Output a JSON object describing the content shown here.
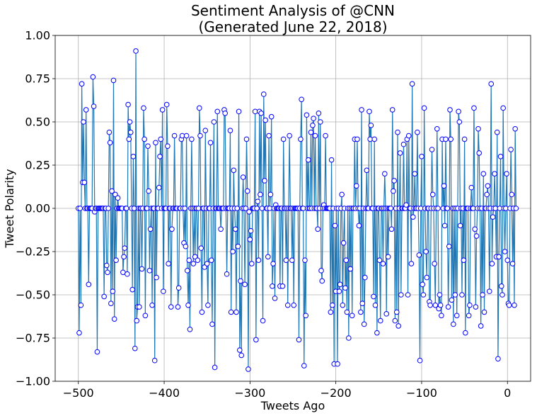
{
  "chart_data": {
    "type": "line",
    "title": "Sentiment Analysis of @CNN\n(Generated June 22, 2018)",
    "title_lines": [
      "Sentiment Analysis of @CNN",
      "(Generated June 22, 2018)"
    ],
    "xlabel": "Tweets Ago",
    "ylabel": "Tweet Polarity",
    "xlim": [
      -527,
      27
    ],
    "ylim": [
      -1.0,
      1.0
    ],
    "xticks": [
      -500,
      -400,
      -300,
      -200,
      -100,
      0
    ],
    "xtick_labels": [
      "−500",
      "−400",
      "−300",
      "−200",
      "−100",
      "0"
    ],
    "yticks": [
      -1.0,
      -0.75,
      -0.5,
      -0.25,
      0.0,
      0.25,
      0.5,
      0.75,
      1.0
    ],
    "ytick_labels": [
      "−1.00",
      "−0.75",
      "−0.50",
      "−0.25",
      "0.00",
      "0.25",
      "0.50",
      "0.75",
      "1.00"
    ],
    "grid": true,
    "line_color": "#1f77b4",
    "marker_edge_color": "#0000ff",
    "marker_face_color": "#ffffff",
    "x_start": -500,
    "x_step": 1,
    "series": [
      {
        "values": [
          0,
          -0.72,
          0,
          -0.56,
          0.72,
          0.15,
          0.5,
          0.15,
          0,
          0.57,
          0,
          0,
          -0.44,
          0,
          0,
          0,
          0,
          0.76,
          0.59,
          -0.02,
          0,
          0,
          -0.83,
          0,
          0,
          0,
          0,
          0,
          0,
          0,
          -0.51,
          0,
          0,
          -0.33,
          -0.37,
          0,
          0.44,
          0.38,
          -0.55,
          0.1,
          -0.48,
          0.74,
          -0.64,
          0.08,
          -0.3,
          0,
          0.06,
          0,
          0,
          0,
          0,
          0,
          -0.37,
          -0.28,
          -0.23,
          0,
          0,
          -0.38,
          0.6,
          0.4,
          0.5,
          0.44,
          0,
          -0.47,
          0.3,
          0,
          -0.81,
          0.91,
          -0.65,
          -0.57,
          0,
          -0.57,
          0,
          0,
          -0.35,
          0,
          0.58,
          0.4,
          -0.62,
          0,
          0,
          0.36,
          0.1,
          -0.36,
          -0.12,
          0,
          -0.56,
          0,
          0,
          -0.88,
          0.38,
          -0.4,
          0,
          0,
          0.12,
          0.3,
          0.4,
          0,
          0.57,
          -0.48,
          0,
          0,
          0,
          0.6,
          0.36,
          -0.32,
          0,
          0,
          -0.57,
          -0.12,
          0,
          0,
          0.42,
          0,
          0,
          0,
          -0.57,
          -0.46,
          0,
          0,
          0.4,
          0.42,
          0,
          -0.2,
          0,
          -0.22,
          0.42,
          -0.36,
          -0.56,
          -0.3,
          -0.7,
          0,
          0.4,
          0,
          -0.32,
          0,
          -0.28,
          0,
          0,
          -0.3,
          0,
          0.58,
          0.42,
          -0.23,
          -0.6,
          0,
          0,
          -0.34,
          0.45,
          0,
          -0.32,
          -0.56,
          0,
          0,
          0.38,
          -0.3,
          -0.67,
          0,
          0.5,
          -0.92,
          0,
          0,
          0.56,
          0,
          0,
          0,
          -0.12,
          0,
          0,
          0,
          0.57,
          0.55,
          0,
          -0.38,
          0,
          0,
          0,
          0.45,
          -0.6,
          0,
          -0.25,
          0.22,
          0,
          -0.12,
          -0.6,
          0,
          -0.22,
          0.56,
          -0.82,
          -0.42,
          -0.85,
          0,
          0.18,
          0,
          -0.44,
          0,
          0.4,
          0.1,
          -0.93,
          -0.02,
          -0.18,
          -0.13,
          -0.32,
          0,
          0,
          0,
          0.56,
          -0.76,
          0,
          0.04,
          -0.3,
          0.56,
          0.08,
          0.55,
          0,
          -0.65,
          0.66,
          0.16,
          0.51,
          0,
          0,
          -0.28,
          0.42,
          0,
          0.08,
          0.53,
          -0.45,
          -0.32,
          0,
          -0.52,
          0.02,
          0,
          0,
          0,
          0,
          -0.45,
          0,
          0,
          -0.45,
          0.4,
          0,
          0,
          -0.3,
          0,
          -0.56,
          0,
          0.42,
          0,
          0,
          -0.3,
          0,
          -0.56,
          0,
          0,
          0,
          0,
          0,
          -0.76,
          0,
          0.4,
          0.63,
          0,
          0,
          -0.91,
          -0.3,
          -0.62,
          0.54,
          0,
          0.28,
          0,
          0,
          0.44,
          0,
          0.48,
          0.52,
          0,
          0.42,
          0,
          0,
          -0.12,
          0.55,
          0,
          0.5,
          -0.36,
          -0.42,
          0,
          0.02,
          0,
          0.42,
          0,
          0,
          0,
          0,
          0,
          -0.6,
          0.28,
          -0.56,
          0,
          -0.9,
          -0.1,
          -0.48,
          0,
          -0.9,
          0,
          -0.48,
          -0.44,
          0,
          0.08,
          -0.56,
          -0.2,
          0,
          -0.46,
          -0.3,
          -0.6,
          0,
          -0.75,
          0,
          -0.35,
          0,
          -0.62,
          0,
          0,
          0.4,
          0,
          0.13,
          0.4,
          0,
          -0.1,
          0,
          -0.6,
          0.57,
          -0.55,
          0,
          -0.67,
          -0.4,
          0,
          0.22,
          0,
          0,
          0.56,
          0.4,
          0.48,
          0,
          0,
          -0.51,
          0.4,
          -0.56,
          0,
          -0.72,
          0,
          0,
          -0.3,
          -0.65,
          0,
          0,
          -0.32,
          0,
          0.2,
          0,
          -0.61,
          0,
          -0.28,
          0,
          0,
          0,
          -0.12,
          0.57,
          0.1,
          0.16,
          -0.65,
          0,
          -0.6,
          0.44,
          -0.68,
          0,
          0.32,
          -0.5,
          0,
          0,
          0.37,
          0,
          0,
          0.02,
          0.4,
          -0.5,
          0.42,
          0,
          0,
          -0.32,
          0.72,
          -0.05,
          0,
          0.2,
          0,
          0,
          0.44,
          0,
          -0.27,
          -0.88,
          0,
          0.3,
          -0.44,
          -0.5,
          0.58,
          0,
          -0.25,
          -0.4,
          0,
          0,
          -0.54,
          -0.56,
          0,
          0.34,
          0.08,
          0,
          -0.32,
          -0.56,
          0,
          0.46,
          0,
          -0.58,
          -0.5,
          -0.56,
          -0.62,
          0.4,
          0,
          0.13,
          -0.1,
          0.4,
          0,
          0,
          -0.57,
          -0.22,
          0.57,
          0.4,
          -0.53,
          0,
          -0.67,
          0,
          -0.5,
          0,
          -0.62,
          0,
          0.56,
          0.5,
          -0.1,
          0,
          -0.5,
          0,
          -0.3,
          0.4,
          -0.72,
          0,
          0,
          0,
          -0.62,
          -0.56,
          0,
          0.12,
          0,
          0,
          0.58,
          -0.12,
          -0.57,
          -0.16,
          0,
          0.46,
          0.32,
          0,
          -0.68,
          0,
          -0.5,
          0.2,
          -0.6,
          0,
          0,
          0.08,
          0.13,
          0,
          -0.48,
          0,
          0.72,
          -0.32,
          -0.05,
          0,
          0.2,
          0,
          -0.28,
          0.44,
          -0.87,
          -0.28,
          0,
          0.3,
          -0.45,
          -0.5,
          0.58,
          0,
          -0.25,
          0,
          0.2,
          -0.3,
          -0.55,
          -0.56,
          0,
          0.34,
          0.08,
          -0.32,
          0,
          -0.56,
          0.46,
          0
        ]
      }
    ]
  }
}
